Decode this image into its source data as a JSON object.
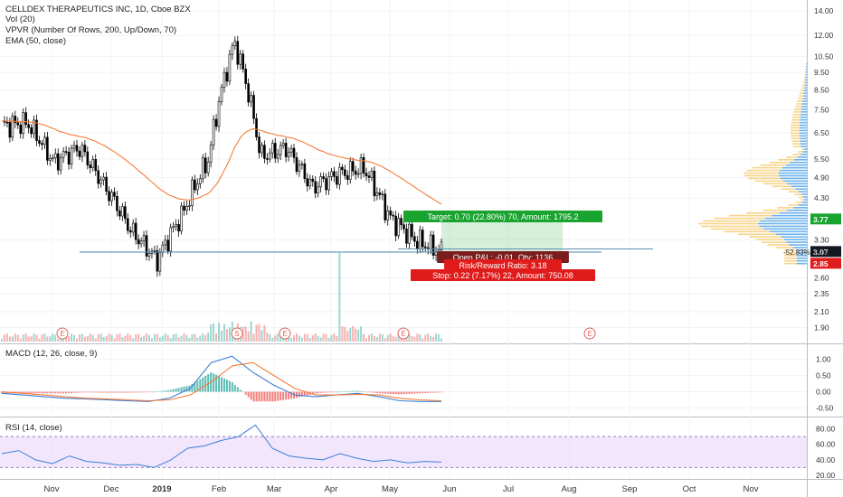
{
  "header": {
    "title": "CELLDEX THERAPEUTICS INC, 1D, Cboe BZX",
    "indicators": [
      "Vol (20)",
      "VPVR (Number Of Rows, 200, Up/Down, 70)",
      "EMA (50, close)"
    ]
  },
  "colors": {
    "up": "#26a69a",
    "down": "#ef5350",
    "ema": "#f57c3a",
    "macd_line": "#3d7fd6",
    "signal_line": "#f57c3a",
    "rsi": "#3d7fd6",
    "rsi_band": "#ead5fb",
    "target": "#18a42f",
    "stop": "#e01b1b",
    "vp_up": "#5aa9ea",
    "vp_down": "#f7cf7b"
  },
  "chart_data": [
    {
      "type": "candlestick",
      "pane": "price",
      "y_scale": "log",
      "ylim": [
        1.8,
        14.5
      ],
      "price_ticks": [
        "14.00",
        "12.00",
        "10.50",
        "9.50",
        "8.50",
        "7.50",
        "6.50",
        "5.50",
        "4.90",
        "4.30",
        "3.77",
        "3.30",
        "3.07",
        "3.06",
        "2.85",
        "2.60",
        "2.35",
        "2.10",
        "1.90"
      ],
      "x_ticks": [
        "Nov",
        "Dec",
        "2019",
        "Feb",
        "Mar",
        "Apr",
        "May",
        "Jun",
        "Jul",
        "Aug",
        "Sep",
        "Oct",
        "Nov"
      ],
      "ohlc_keypoints": [
        {
          "t": "start",
          "close": 6.8
        },
        {
          "t": "late Oct",
          "close": 6.9
        },
        {
          "t": "early Nov",
          "close": 5.4
        },
        {
          "t": "mid Nov",
          "close": 5.9
        },
        {
          "t": "late Nov",
          "close": 4.6
        },
        {
          "t": "mid Dec",
          "close": 3.5
        },
        {
          "t": "2019-01 low",
          "close": 2.9
        },
        {
          "t": "mid Jan",
          "close": 3.9
        },
        {
          "t": "late Jan",
          "close": 5.5
        },
        {
          "t": "Feb peak",
          "close": 11.5
        },
        {
          "t": "mid Feb",
          "close": 5.6
        },
        {
          "t": "late Feb",
          "close": 5.9
        },
        {
          "t": "Mar",
          "close": 4.6
        },
        {
          "t": "late Mar",
          "close": 5.0
        },
        {
          "t": "Apr",
          "close": 5.2
        },
        {
          "t": "late Apr",
          "close": 3.8
        },
        {
          "t": "May",
          "close": 3.3
        },
        {
          "t": "end",
          "close": 3.07
        }
      ],
      "ema_label": "EMA (50, close)",
      "horizontal_lines": [
        3.06,
        3.12
      ],
      "events": [
        "E",
        "S",
        "E",
        "E",
        "E"
      ],
      "position": {
        "target_label": "Target: 0.70 (22.80%) 70, Amount: 1795.2",
        "pnl_label": "Open P&L: -0.01, Qty: 1136",
        "rr_label": "Risk/Reward Ratio: 3.18",
        "stop_label": "Stop: 0.22 (7.17%) 22, Amount: 750.08",
        "entry": 3.07,
        "target": 3.77,
        "stop": 2.85
      },
      "badges": {
        "current": "3.07",
        "target": "3.77",
        "stop": "2.85",
        "pct": "-52.83%",
        "line": "3.06"
      }
    },
    {
      "type": "line",
      "pane": "MACD",
      "title": "MACD (12, 26, close, 9)",
      "ylim": [
        -0.6,
        1.3
      ],
      "y_ticks": [
        "1.00",
        "0.50",
        "0.00",
        "-0.50"
      ],
      "series": [
        {
          "name": "MACD",
          "values": [
            -0.05,
            -0.1,
            -0.15,
            -0.2,
            -0.22,
            -0.25,
            -0.28,
            -0.3,
            -0.2,
            0.1,
            0.9,
            1.1,
            0.6,
            0.2,
            -0.1,
            -0.15,
            -0.1,
            -0.05,
            -0.15,
            -0.28,
            -0.3,
            -0.3
          ]
        },
        {
          "name": "Signal",
          "values": [
            0.0,
            -0.05,
            -0.1,
            -0.15,
            -0.2,
            -0.22,
            -0.25,
            -0.28,
            -0.25,
            -0.1,
            0.3,
            0.8,
            0.9,
            0.5,
            0.1,
            -0.1,
            -0.1,
            -0.08,
            -0.1,
            -0.2,
            -0.25,
            -0.28
          ]
        }
      ]
    },
    {
      "type": "line",
      "pane": "RSI",
      "title": "RSI (14, close)",
      "ylim": [
        20,
        90
      ],
      "y_ticks": [
        "80.00",
        "60.00",
        "40.00",
        "20.00"
      ],
      "band": [
        30,
        70
      ],
      "values": [
        48,
        52,
        40,
        35,
        45,
        38,
        36,
        33,
        34,
        30,
        40,
        55,
        58,
        65,
        70,
        85,
        55,
        45,
        42,
        40,
        48,
        42,
        38,
        40,
        36,
        38,
        37
      ]
    }
  ]
}
